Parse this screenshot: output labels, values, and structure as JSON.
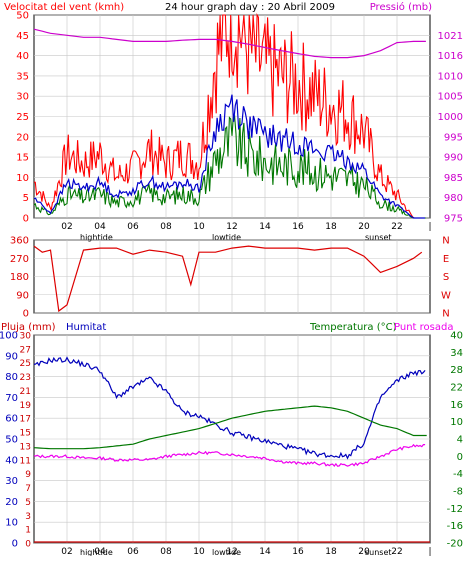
{
  "colors": {
    "wind_gust": "#ff0000",
    "wind_avg": "#0000cc",
    "wind_min": "#007700",
    "pressure": "#cc00cc",
    "direction": "#dd0000",
    "rain": "#cc0000",
    "humidity": "#0000bb",
    "temperature": "#007700",
    "dewpoint": "#ee00ee",
    "frame": "#000000",
    "grid": "#c8c8c8"
  },
  "header": {
    "left": "Velocitat del vent (kmh)",
    "center": "24 hour graph day : 20 Abril 2009",
    "right": "Pressió (mb)"
  },
  "mid_header": {
    "left": "Pluja (mm)",
    "humidity": "Humitat",
    "temperature": "Temperatura (°C)",
    "dewpoint": "Punt rosada"
  },
  "x_ticks": [
    "02",
    "04",
    "06",
    "08",
    "10",
    "12",
    "14",
    "16",
    "18",
    "20",
    "22",
    "|"
  ],
  "events": {
    "tide1": "hightide",
    "tide2": "lowtide",
    "sunset": "sunset"
  },
  "chart_data": [
    {
      "type": "line",
      "x_label_ticks": [
        "02",
        "04",
        "06",
        "08",
        "10",
        "12",
        "14",
        "16",
        "18",
        "20",
        "22"
      ],
      "y_ticks_left": [
        0,
        5,
        10,
        15,
        20,
        25,
        30,
        35,
        40,
        45,
        50
      ],
      "y_ticks_right": [
        975,
        980,
        985,
        990,
        995,
        1000,
        1005,
        1010,
        1016,
        1021
      ],
      "ylim": [
        0,
        50
      ],
      "y2lim": [
        975,
        1025
      ],
      "series": [
        {
          "name": "Velocitat del vent (kmh)",
          "x": [
            0,
            1,
            2,
            3,
            4,
            5,
            6,
            7,
            8,
            9,
            10,
            11,
            12,
            13,
            14,
            15,
            16,
            17,
            18,
            19,
            20,
            21,
            22,
            23,
            24
          ],
          "values": [
            8,
            2,
            14,
            12,
            14,
            9,
            11,
            15,
            12,
            14,
            12,
            35,
            46,
            37,
            33,
            31,
            30,
            27,
            25,
            23,
            19,
            9,
            5,
            0,
            0
          ]
        },
        {
          "name": "Pressió (mb)",
          "x": [
            0,
            1,
            2,
            3,
            4,
            5,
            6,
            7,
            8,
            9,
            10,
            11,
            12,
            13,
            14,
            15,
            16,
            17,
            18,
            19,
            20,
            21,
            22,
            23,
            24
          ],
          "values": [
            1021.5,
            1020.5,
            1020,
            1019.5,
            1019.5,
            1019,
            1018.5,
            1018.5,
            1018.5,
            1018.8,
            1019,
            1019,
            1018.5,
            1017.8,
            1017,
            1016.2,
            1015.5,
            1014.8,
            1014.5,
            1014.5,
            1015,
            1016.2,
            1018.2,
            1018.5,
            1018.5
          ]
        }
      ]
    },
    {
      "type": "line",
      "y_ticks": [
        0,
        90,
        180,
        270,
        360
      ],
      "direction_labels": [
        "N",
        "W",
        "S",
        "E",
        "N"
      ],
      "ylim": [
        0,
        360
      ],
      "series": [
        {
          "name": "direction",
          "x": [
            0,
            0.5,
            1,
            1.5,
            2,
            3,
            4,
            5,
            6,
            7,
            8,
            9,
            9.5,
            10,
            11,
            12,
            13,
            14,
            15,
            16,
            17,
            18,
            19,
            20,
            20.5,
            21,
            22,
            23,
            23.5
          ],
          "values": [
            330,
            300,
            310,
            10,
            40,
            310,
            320,
            320,
            290,
            310,
            300,
            280,
            140,
            300,
            300,
            320,
            330,
            320,
            320,
            320,
            310,
            320,
            320,
            280,
            240,
            200,
            230,
            270,
            300
          ]
        }
      ]
    },
    {
      "type": "line",
      "y_ticks_left": [
        0,
        10,
        20,
        30,
        40,
        50,
        60,
        70,
        80,
        90,
        100
      ],
      "y_ticks_rain": [
        0,
        1,
        3,
        5,
        7,
        9,
        11,
        13,
        15,
        17,
        19,
        21,
        23,
        25,
        27,
        30
      ],
      "y_ticks_right": [
        -20,
        -16,
        -12,
        -8,
        -4,
        0,
        4,
        10,
        16,
        22,
        28,
        34,
        40
      ],
      "ylim": [
        0,
        100
      ],
      "y2lim": [
        -20,
        40
      ],
      "series": [
        {
          "name": "Humitat",
          "x": [
            0,
            1,
            2,
            3,
            4,
            5,
            6,
            7,
            8,
            9,
            10,
            11,
            12,
            13,
            14,
            15,
            16,
            17,
            18,
            19,
            20,
            21,
            22,
            23,
            24
          ],
          "values": [
            85,
            88,
            88,
            86,
            83,
            70,
            75,
            79,
            73,
            63,
            61,
            57,
            53,
            51,
            49,
            47,
            45,
            43,
            42,
            42,
            48,
            70,
            78,
            82,
            82
          ]
        },
        {
          "name": "Temperatura (°C)",
          "x": [
            0,
            1,
            2,
            3,
            4,
            5,
            6,
            7,
            8,
            9,
            10,
            11,
            12,
            13,
            14,
            15,
            16,
            17,
            18,
            19,
            20,
            21,
            22,
            23,
            24
          ],
          "values": [
            7.5,
            7.2,
            7.2,
            7.2,
            7.5,
            8,
            8.5,
            10,
            11,
            12,
            13,
            14.5,
            16,
            17,
            18,
            18.5,
            19,
            19.5,
            19,
            18,
            16,
            14,
            13,
            11,
            11
          ]
        },
        {
          "name": "Punt rosada",
          "x": [
            0,
            1,
            2,
            3,
            4,
            5,
            6,
            7,
            8,
            9,
            10,
            11,
            12,
            13,
            14,
            15,
            16,
            17,
            18,
            19,
            20,
            21,
            22,
            23,
            24
          ],
          "values": [
            5,
            5,
            5,
            4.5,
            4.5,
            4,
            4,
            4,
            5,
            5.5,
            6,
            6,
            5.5,
            5,
            4.5,
            3.5,
            3,
            3,
            2.5,
            2.5,
            3,
            5,
            7,
            8,
            8
          ]
        },
        {
          "name": "Pluja (mm)",
          "x": [
            0,
            24
          ],
          "values": [
            0,
            0
          ]
        }
      ]
    }
  ]
}
